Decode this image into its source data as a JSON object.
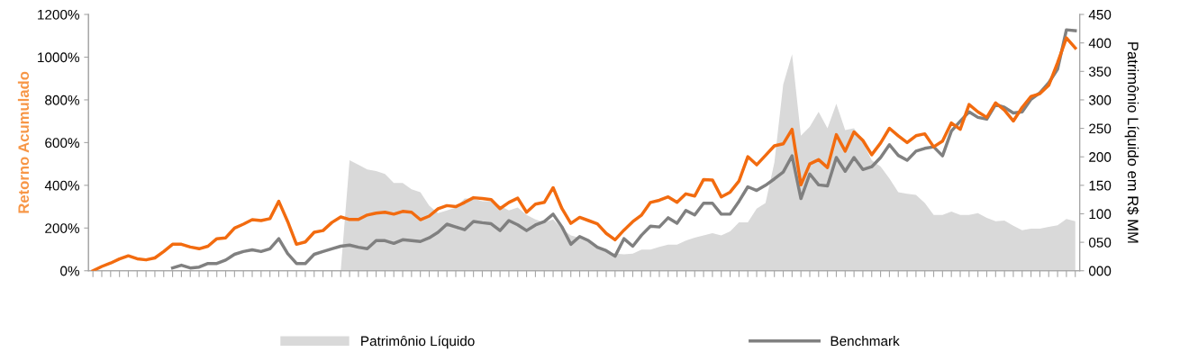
{
  "chart_data": {
    "type": "line",
    "ylabel": "Retorno Acumulado",
    "y2label": "Patrimônio Líquido em R$ MM",
    "categories": [
      null,
      null,
      null,
      null,
      null,
      null,
      null,
      null,
      null,
      null,
      null,
      null,
      null,
      null,
      null,
      null,
      null,
      null,
      null,
      null,
      null,
      null,
      null,
      null,
      null,
      null,
      null,
      null,
      null,
      null,
      null,
      null,
      null,
      null,
      null,
      null,
      null,
      null,
      null,
      null,
      null,
      null,
      null,
      null,
      null,
      null,
      null,
      null,
      null,
      null,
      null,
      null,
      null,
      null,
      null,
      null,
      null,
      null,
      null,
      null,
      null,
      null,
      null,
      null,
      null,
      null,
      null,
      null,
      null,
      null,
      null,
      null,
      null,
      null,
      null,
      null,
      null,
      null,
      null,
      null,
      null,
      null,
      null,
      null,
      null,
      null,
      null,
      null,
      null,
      null,
      null,
      null,
      null,
      null,
      null,
      null,
      null,
      null,
      null,
      null,
      null,
      null,
      null,
      null,
      null,
      null,
      null,
      null,
      null,
      null,
      null,
      null
    ],
    "series": [
      {
        "name": "Patrimônio Líquido",
        "type": "area",
        "axis": "y2",
        "color": "#d9d9d9",
        "values": [
          0,
          0,
          0,
          0,
          0,
          0,
          0,
          0,
          0,
          0,
          0,
          0,
          0,
          0,
          0,
          0,
          0,
          0,
          0,
          0,
          0,
          0,
          0,
          0,
          0,
          0,
          0,
          0,
          0,
          194,
          186,
          178,
          175,
          170,
          154,
          154,
          143,
          138,
          114,
          101,
          106,
          111,
          127,
          127,
          122,
          122,
          114,
          106,
          111,
          98,
          90,
          85,
          90,
          74,
          62,
          58,
          53,
          42,
          34,
          30,
          29,
          30,
          37,
          37,
          42,
          46,
          46,
          53,
          58,
          62,
          66,
          62,
          69,
          85,
          85,
          109,
          119,
          190,
          327,
          380,
          237,
          253,
          279,
          250,
          293,
          247,
          250,
          226,
          194,
          183,
          162,
          138,
          135,
          133,
          119,
          98,
          98,
          104,
          98,
          98,
          101,
          93,
          87,
          88,
          79,
          71,
          74,
          74,
          77,
          80,
          91,
          87
        ]
      },
      {
        "name": "Benchmark",
        "color": "#808080",
        "values": [
          null,
          null,
          null,
          null,
          null,
          null,
          null,
          null,
          null,
          13,
          26,
          13,
          17,
          34,
          34,
          50,
          77,
          90,
          98,
          90,
          103,
          150,
          81,
          34,
          34,
          77,
          90,
          103,
          115,
          120,
          110,
          103,
          141,
          141,
          128,
          145,
          141,
          137,
          154,
          180,
          218,
          205,
          192,
          231,
          225,
          220,
          188,
          235,
          215,
          188,
          214,
          230,
          265,
          205,
          124,
          160,
          141,
          110,
          94,
          68,
          150,
          115,
          167,
          209,
          205,
          248,
          222,
          282,
          261,
          316,
          316,
          265,
          265,
          325,
          393,
          376,
          400,
          430,
          462,
          538,
          338,
          453,
          402,
          397,
          530,
          466,
          530,
          474,
          487,
          530,
          590,
          540,
          517,
          560,
          573,
          580,
          538,
          654,
          700,
          744,
          718,
          710,
          778,
          765,
          739,
          744,
          803,
          833,
          880,
          944,
          1128,
          1124
        ]
      },
      {
        "color": "#f26b0f",
        "values": [
          0,
          20,
          36,
          55,
          70,
          56,
          51,
          60,
          90,
          124,
          124,
          111,
          103,
          115,
          150,
          154,
          200,
          218,
          239,
          235,
          244,
          325,
          231,
          124,
          135,
          180,
          188,
          226,
          252,
          240,
          240,
          261,
          270,
          274,
          265,
          278,
          274,
          239,
          256,
          290,
          305,
          300,
          320,
          342,
          338,
          333,
          291,
          320,
          340,
          274,
          312,
          320,
          389,
          291,
          222,
          250,
          235,
          220,
          175,
          145,
          190,
          230,
          261,
          320,
          330,
          346,
          320,
          360,
          350,
          427,
          425,
          346,
          368,
          420,
          534,
          496,
          540,
          585,
          594,
          662,
          402,
          500,
          520,
          483,
          637,
          560,
          650,
          610,
          543,
          598,
          667,
          632,
          600,
          632,
          641,
          580,
          607,
          692,
          662,
          778,
          744,
          718,
          786,
          752,
          701,
          765,
          816,
          829,
          868,
          974,
          1090,
          1043
        ]
      }
    ],
    "ylim": [
      0,
      1200
    ],
    "yticks": [
      {
        "value": 0,
        "label": "0%"
      },
      {
        "value": 200,
        "label": "200%"
      },
      {
        "value": 400,
        "label": "400%"
      },
      {
        "value": 600,
        "label": "600%"
      },
      {
        "value": 800,
        "label": "800%"
      },
      {
        "value": 1000,
        "label": "1000%"
      },
      {
        "value": 1200,
        "label": "1200%"
      }
    ],
    "y2lim": [
      0,
      450
    ],
    "y2ticks": [
      {
        "value": 0,
        "label": "000"
      },
      {
        "value": 50,
        "label": "050"
      },
      {
        "value": 100,
        "label": "100"
      },
      {
        "value": 150,
        "label": "150"
      },
      {
        "value": 200,
        "label": "200"
      },
      {
        "value": 250,
        "label": "250"
      },
      {
        "value": 300,
        "label": "300"
      },
      {
        "value": 350,
        "label": "350"
      },
      {
        "value": 400,
        "label": "400"
      },
      {
        "value": 450,
        "label": "450"
      }
    ],
    "legend": "bottom",
    "marker": "none",
    "line_style": "solid"
  }
}
